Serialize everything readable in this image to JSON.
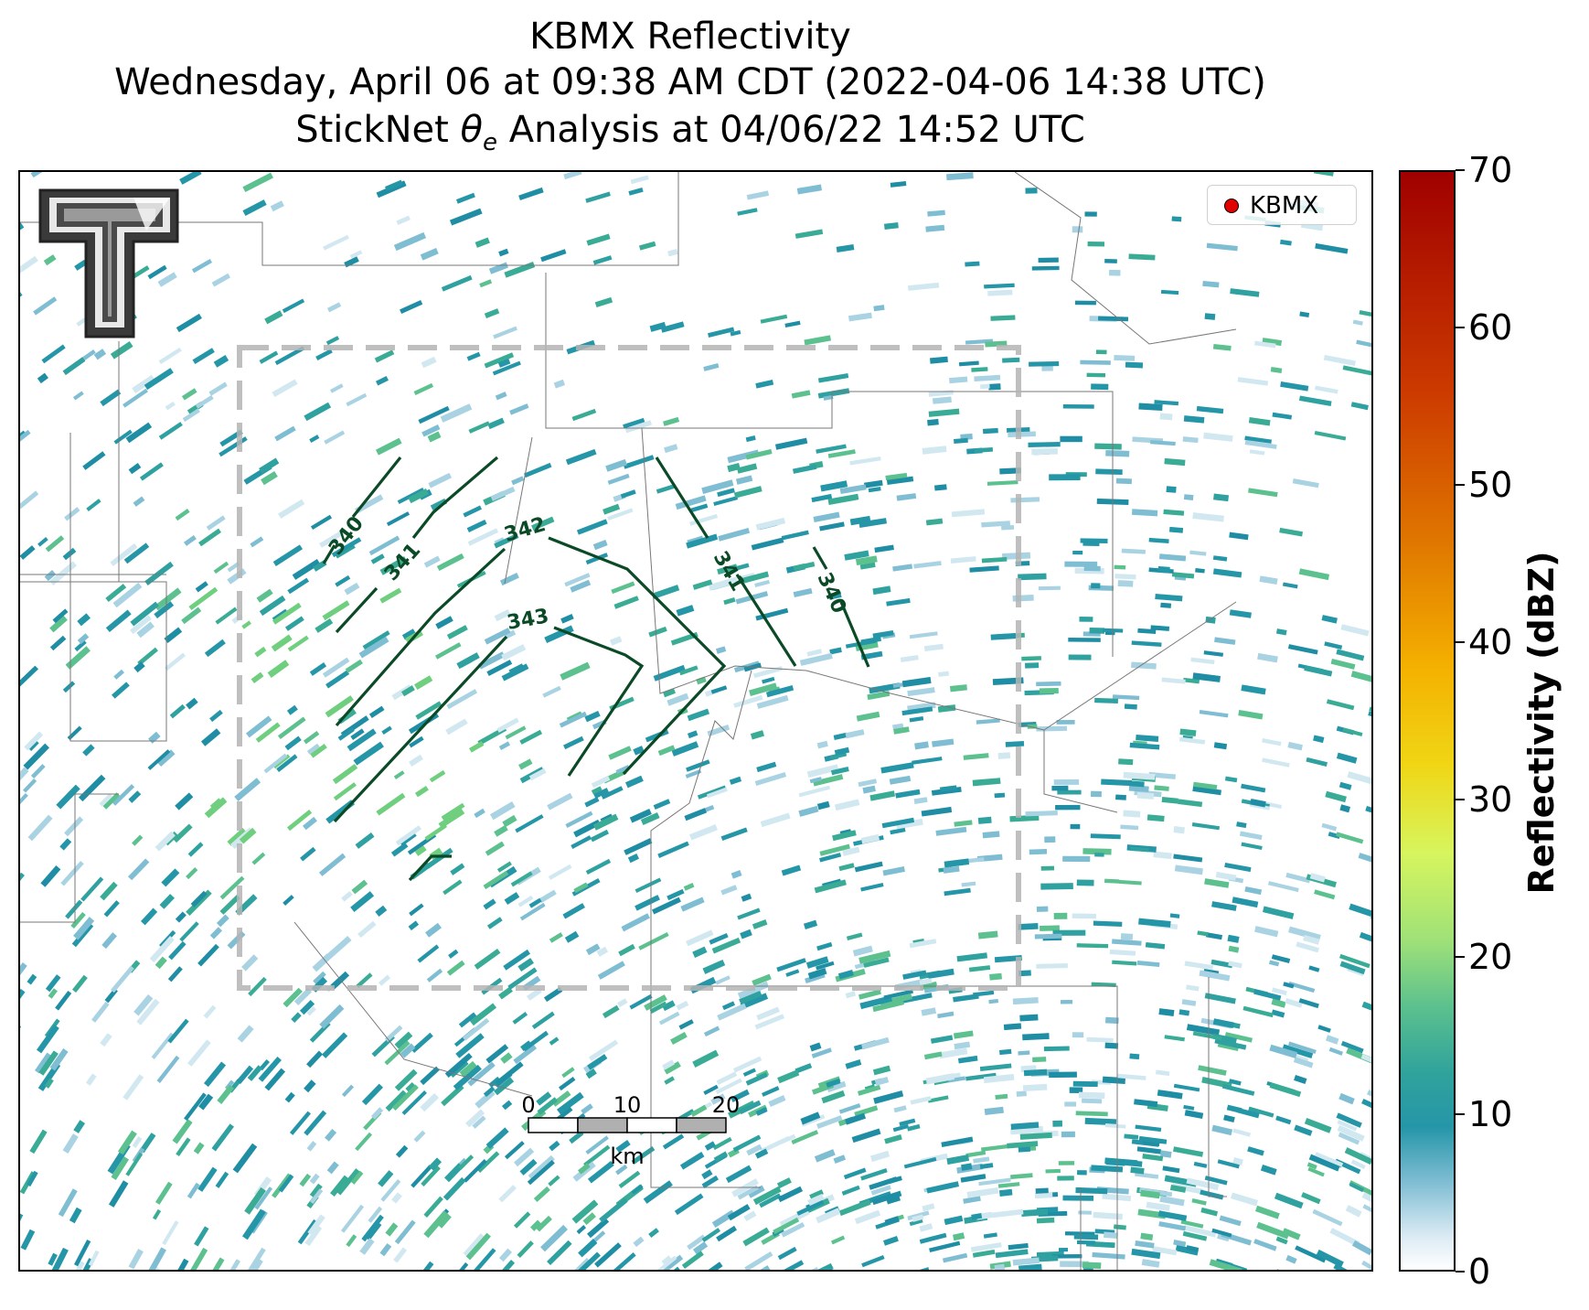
{
  "title": {
    "line1": "KBMX Reflectivity",
    "line2": "Wednesday, April 06 at 09:38 AM CDT (2022-04-06 14:38 UTC)",
    "line3_prefix": "StickNet ",
    "line3_symbol": "θ",
    "line3_subscript": "e",
    "line3_suffix": " Analysis at 04/06/22 14:52 UTC"
  },
  "legend": {
    "entries": [
      {
        "label": "KBMX",
        "marker": "circle",
        "color": "#e00000"
      }
    ],
    "placement": "top-right"
  },
  "logo": {
    "icon": "texas-tech-double-t-logo"
  },
  "colorbar": {
    "label": "Reflectivity (dBZ)",
    "ticks": [
      "0",
      "10",
      "20",
      "30",
      "40",
      "50",
      "60",
      "70"
    ],
    "range": [
      0,
      70
    ],
    "colors": [
      "#ffffff",
      "#2596a8",
      "#5cc18e",
      "#d7f55e",
      "#f0d615",
      "#e07800",
      "#cc3a00",
      "#a00000"
    ]
  },
  "contours": {
    "variable": "theta-e",
    "color": "#0b4a26",
    "labels": [
      "340",
      "341",
      "342",
      "343",
      "341",
      "340"
    ]
  },
  "analysis_box": {
    "style": "dashed",
    "color": "#b0b0b0"
  },
  "scalebar": {
    "ticks": [
      "0",
      "10",
      "20"
    ],
    "unit": "km"
  }
}
